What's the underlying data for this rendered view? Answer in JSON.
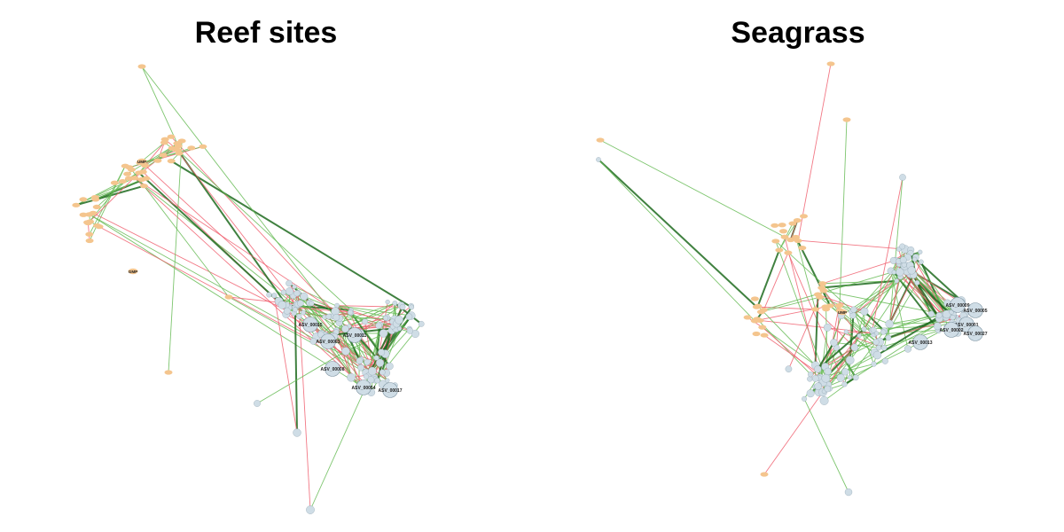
{
  "panels": [
    {
      "title": "Reef sites",
      "colors": {
        "positive_edge": "#66bb55",
        "strong_positive_edge": "#1f6b1f",
        "negative_edge": "#f06070",
        "metabolite_node": "#f4c58e",
        "asv_node": "#cfdde6",
        "node_stroke": "#7f95a3"
      },
      "node_labels_readable": [
        "ASV_00015",
        "ASV_00003",
        "ASV_00011",
        "ASV_00008",
        "ASV_00054",
        "ASV_00017",
        "UMP",
        "GMP"
      ]
    },
    {
      "title": "Seagrass",
      "colors": {
        "positive_edge": "#66bb55",
        "strong_positive_edge": "#1f6b1f",
        "negative_edge": "#f06070",
        "metabolite_node": "#f4c58e",
        "asv_node": "#cfdde6",
        "node_stroke": "#7f95a3"
      },
      "node_labels_readable": [
        "ASV_00009",
        "ASV_00005",
        "ASV_00001",
        "ASV_00002",
        "ASV_00027",
        "ASV_00013",
        "UMP"
      ]
    }
  ]
}
